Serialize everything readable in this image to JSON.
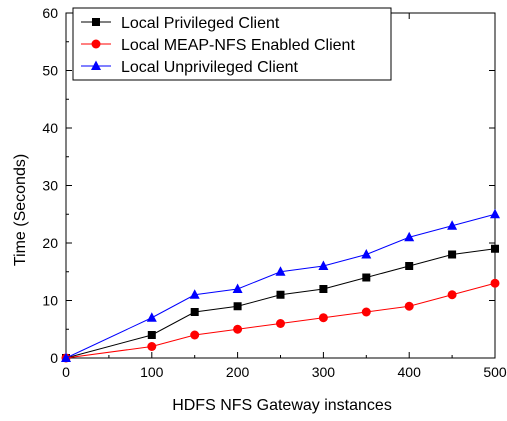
{
  "chart_data": {
    "type": "line",
    "title": "",
    "xlabel": "HDFS NFS Gateway instances",
    "ylabel": "Time (Seconds)",
    "xlim": [
      0,
      500
    ],
    "ylim": [
      0,
      60
    ],
    "xticks": [
      0,
      100,
      200,
      300,
      400,
      500
    ],
    "yticks": [
      0,
      10,
      20,
      30,
      40,
      50,
      60
    ],
    "grid": false,
    "legend_position": "top-left",
    "x": [
      0,
      100,
      150,
      200,
      250,
      300,
      350,
      400,
      450,
      500
    ],
    "series": [
      {
        "name": "Local Privileged Client",
        "color": "#000000",
        "marker": "square",
        "values": [
          0,
          4,
          8,
          9,
          11,
          12,
          14,
          16,
          18,
          19
        ]
      },
      {
        "name": "Local MEAP-NFS Enabled Client",
        "color": "#ff0000",
        "marker": "circle",
        "values": [
          0,
          2,
          4,
          5,
          6,
          7,
          8,
          9,
          11,
          13
        ]
      },
      {
        "name": "Local Unprivileged Client",
        "color": "#0000ff",
        "marker": "triangle",
        "values": [
          0,
          7,
          11,
          12,
          15,
          16,
          18,
          21,
          23,
          25
        ]
      }
    ]
  }
}
